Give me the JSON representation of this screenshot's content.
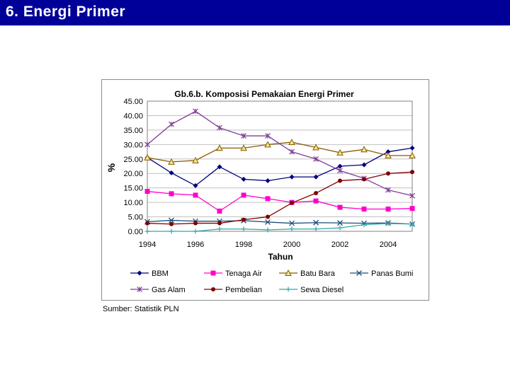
{
  "slide": {
    "title": "6. Energi Primer",
    "source": "Sumber: Statistik PLN"
  },
  "colors": {
    "title_bar": "#000099",
    "grid": "#c0c0c0"
  },
  "chart_data": {
    "type": "line",
    "title": "Gb.6.b. Komposisi Pemakaian Energi Primer",
    "xlabel": "Tahun",
    "ylabel": "%",
    "x": [
      1994,
      1995,
      1996,
      1997,
      1998,
      1999,
      2000,
      2001,
      2002,
      2003,
      2004,
      2005
    ],
    "xticks": [
      "1994",
      "1996",
      "1998",
      "2000",
      "2002",
      "2004"
    ],
    "yticks": [
      "0.00",
      "5.00",
      "10.00",
      "15.00",
      "20.00",
      "25.00",
      "30.00",
      "35.00",
      "40.00",
      "45.00"
    ],
    "ylim": [
      0,
      45
    ],
    "grid": true,
    "legend_position": "bottom",
    "series": [
      {
        "name": "BBM",
        "color": "#00007f",
        "marker": "diamond",
        "values": [
          25.5,
          20.2,
          15.8,
          22.3,
          18.0,
          17.5,
          18.8,
          18.8,
          22.5,
          23.0,
          27.5,
          28.8
        ]
      },
      {
        "name": "Tenaga Air",
        "color": "#ff00cc",
        "marker": "square",
        "values": [
          13.8,
          13.0,
          12.5,
          7.0,
          12.5,
          11.3,
          10.0,
          10.5,
          8.3,
          7.7,
          7.7,
          7.9
        ]
      },
      {
        "name": "Batu Bara",
        "color": "#8b5a00",
        "marker": "triangle",
        "values": [
          25.5,
          24.0,
          24.5,
          28.8,
          28.8,
          30.0,
          30.8,
          29.0,
          27.2,
          28.3,
          26.2,
          26.2
        ]
      },
      {
        "name": "Panas Bumi",
        "color": "#1f4e79",
        "marker": "x",
        "values": [
          3.3,
          3.8,
          3.5,
          3.5,
          3.7,
          3.2,
          2.8,
          3.0,
          2.9,
          2.8,
          2.9,
          2.5
        ]
      },
      {
        "name": "Gas Alam",
        "color": "#7f3f98",
        "marker": "star",
        "values": [
          30.0,
          37.0,
          41.5,
          35.8,
          33.0,
          33.0,
          27.5,
          25.0,
          21.0,
          18.3,
          14.3,
          12.3
        ]
      },
      {
        "name": "Pembelian",
        "color": "#800000",
        "marker": "circle",
        "values": [
          2.8,
          2.5,
          2.8,
          2.8,
          4.0,
          5.0,
          9.8,
          13.2,
          17.5,
          18.0,
          20.0,
          20.5
        ]
      },
      {
        "name": "Sewa Diesel",
        "color": "#2fa8a8",
        "marker": "plus",
        "values": [
          0.0,
          0.0,
          0.0,
          0.8,
          0.8,
          0.5,
          0.8,
          0.8,
          1.2,
          2.3,
          2.7,
          2.5
        ]
      }
    ]
  }
}
